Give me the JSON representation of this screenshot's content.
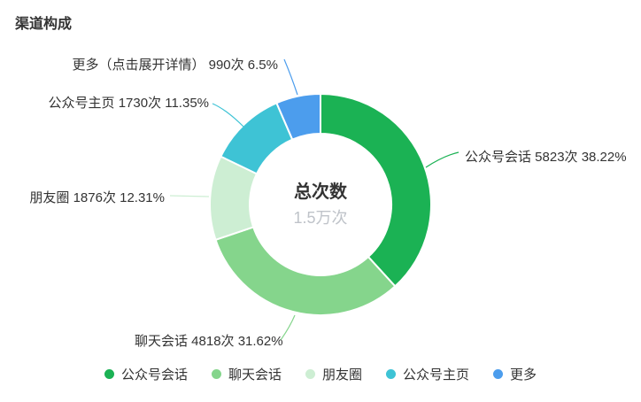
{
  "page": {
    "title": "渠道构成"
  },
  "chart_data": {
    "type": "pie",
    "subtype": "donut",
    "title": "渠道构成",
    "center": {
      "title": "总次数",
      "value": "1.5万次"
    },
    "unit": "次",
    "legend_position": "bottom",
    "series": [
      {
        "name": "公众号会话",
        "value": 5823,
        "percent": 38.22,
        "label": "公众号会话 5823次 38.22%",
        "color": "#1bb254"
      },
      {
        "name": "聊天会话",
        "value": 4818,
        "percent": 31.62,
        "label": "聊天会话 4818次 31.62%",
        "color": "#85d58c"
      },
      {
        "name": "朋友圈",
        "value": 1876,
        "percent": 12.31,
        "label": "朋友圈 1876次 12.31%",
        "color": "#cdeed3"
      },
      {
        "name": "公众号主页",
        "value": 1730,
        "percent": 11.35,
        "label": "公众号主页 1730次 11.35%",
        "color": "#3ec3d5"
      },
      {
        "name": "更多",
        "value": 990,
        "percent": 6.5,
        "label": "更多（点击展开详情） 990次 6.5%",
        "color": "#4c9ded"
      }
    ],
    "legend": [
      "公众号会话",
      "聊天会话",
      "朋友圈",
      "公众号主页",
      "更多"
    ]
  }
}
